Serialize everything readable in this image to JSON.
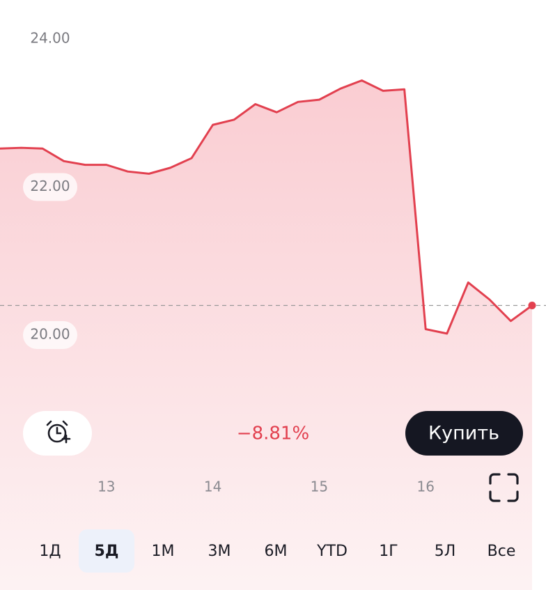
{
  "chart_data": {
    "type": "line",
    "categories": [
      null,
      null,
      null,
      null,
      null,
      "13",
      null,
      null,
      null,
      null,
      "14",
      null,
      null,
      null,
      null,
      "15",
      null,
      null,
      null,
      null,
      "16",
      null,
      null,
      null,
      null,
      null
    ],
    "series": [
      {
        "color": "#e2404f",
        "values": [
          22.52,
          22.53,
          22.52,
          22.35,
          22.3,
          22.3,
          22.21,
          22.18,
          22.26,
          22.39,
          22.84,
          22.91,
          23.12,
          23.01,
          23.15,
          23.18,
          23.33,
          23.44,
          23.3,
          23.32,
          20.08,
          20.02,
          20.71,
          20.48,
          20.19,
          20.4
        ]
      }
    ],
    "ylim": [
      17,
      24.5
    ],
    "yticks": [
      {
        "value": 24,
        "label": "24.00"
      },
      {
        "value": 22,
        "label": "22.00"
      },
      {
        "value": 20,
        "label": "20.00"
      }
    ],
    "reference_line": 20.4
  },
  "ui": {
    "change": "−8.81%",
    "buy": "Купить",
    "periods": [
      "1Д",
      "5Д",
      "1М",
      "3М",
      "6М",
      "YTD",
      "1Г",
      "5Л",
      "Все"
    ],
    "selected_period": 1
  }
}
